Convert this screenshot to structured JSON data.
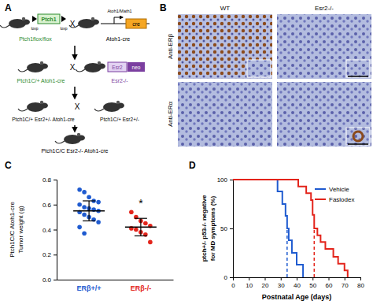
{
  "diagram": {
    "panel": "A",
    "cross": "X",
    "constructs": {
      "ptch1": "Ptch1",
      "loxp": "loxp",
      "promoter": "Atoh1/Math1",
      "cre": "cre",
      "esr2": "Esr2",
      "neo": "neo"
    },
    "generations": [
      [
        "Ptch1flox/flox",
        "Atoh1-cre"
      ],
      [
        "Ptch1C/+ Atoh1-cre",
        "Esr2-/-"
      ],
      [
        "Ptch1C/+ Esr2+/- Atoh1-cre",
        "Ptch1C/+ Esr2+/-"
      ],
      [
        "Ptch1C/C Esr2-/- Atoh1-cre"
      ]
    ]
  },
  "images": {
    "panel": "B",
    "columns": [
      "WT",
      "Esr2-/-"
    ],
    "rows": [
      "Anti-ERβ",
      "Anti-ERα"
    ]
  },
  "chart_data": [
    {
      "type": "dot",
      "panel": "C",
      "y_label": [
        "Ptch1C/C Atoh1-cre",
        "Tumor weight (g)"
      ],
      "categories": [
        "ERβ+/+",
        "ERβ-/-"
      ],
      "colors": [
        "#1f5bd0",
        "#e3241b"
      ],
      "points": [
        [
          0.72,
          0.7,
          0.66,
          0.63,
          0.62,
          0.6,
          0.58,
          0.57,
          0.56,
          0.55,
          0.54,
          0.52,
          0.5,
          0.48,
          0.46,
          0.42,
          0.37
        ],
        [
          0.54,
          0.5,
          0.47,
          0.45,
          0.43,
          0.41,
          0.4,
          0.38,
          0.36,
          0.3
        ]
      ],
      "mean": [
        0.55,
        0.42
      ],
      "sd": [
        0.08,
        0.07
      ],
      "significance": [
        null,
        "*"
      ],
      "ylim": [
        0,
        0.8
      ],
      "yticks": [
        {
          "value": 0,
          "label": "0.0"
        },
        {
          "value": 0.2,
          "label": "0.2"
        },
        {
          "value": 0.4,
          "label": "0.4"
        },
        {
          "value": 0.6,
          "label": "0.6"
        },
        {
          "value": 0.8,
          "label": "0.8"
        }
      ]
    },
    {
      "type": "line",
      "panel": "D",
      "line_style": "step",
      "legend": "upper right",
      "x_label": "Postnatal Age (days)",
      "y_label": [
        "ptch+/- p53-/- negative",
        "for MD symptoms (%)"
      ],
      "series": [
        {
          "name": "Vehicle",
          "color": "#1f5bd0",
          "median": 34,
          "x": [
            0,
            28,
            31,
            33,
            34,
            35,
            37,
            40,
            44
          ],
          "values": [
            100,
            88,
            75,
            63,
            50,
            38,
            25,
            13,
            0
          ]
        },
        {
          "name": "Faslodex",
          "color": "#e3241b",
          "median": 51,
          "x": [
            0,
            41,
            46,
            49,
            50,
            51,
            53,
            55,
            58,
            63,
            66,
            70,
            72
          ],
          "values": [
            100,
            93,
            86,
            79,
            64,
            50,
            43,
            36,
            29,
            21,
            14,
            7,
            0
          ]
        }
      ],
      "xlim": [
        0,
        80
      ],
      "xticks": [
        0,
        10,
        20,
        30,
        40,
        50,
        60,
        70,
        80
      ],
      "ylim": [
        0,
        100
      ],
      "yticks": [
        0,
        50,
        100
      ]
    }
  ]
}
